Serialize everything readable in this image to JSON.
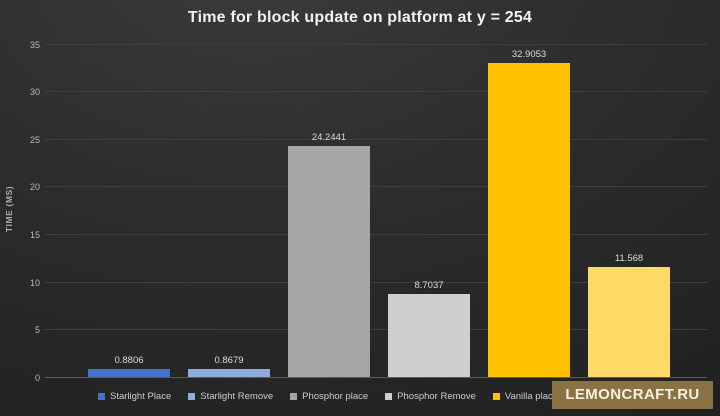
{
  "chart_data": {
    "type": "bar",
    "title": "Time for block update on platform at y = 254",
    "xlabel": "",
    "ylabel": "TIME (MS)",
    "ylim": [
      0,
      35
    ],
    "yticks": [
      0,
      5,
      10,
      15,
      20,
      25,
      30,
      35
    ],
    "grid": true,
    "legend_position": "bottom",
    "series": [
      {
        "name": "Starlight Place",
        "value": 0.8806,
        "value_label": "0.8806",
        "color": "#4472c4"
      },
      {
        "name": "Starlight Remove",
        "value": 0.8679,
        "value_label": "0.8679",
        "color": "#8faadc"
      },
      {
        "name": "Phosphor place",
        "value": 24.2441,
        "value_label": "24.2441",
        "color": "#a6a6a6"
      },
      {
        "name": "Phosphor Remove",
        "value": 8.7037,
        "value_label": "8.7037",
        "color": "#cfcfcf"
      },
      {
        "name": "Vanilla place",
        "value": 32.9053,
        "value_label": "32.9053",
        "color": "#ffc000"
      },
      {
        "name": "",
        "value": 11.568,
        "value_label": "11.568",
        "color": "#ffd966"
      }
    ]
  },
  "colors": {
    "background_dark": "#1e1e1e",
    "title_text": "#f2f2f2",
    "tick_text": "#b9b9b9",
    "gridline": "#3e3e3e",
    "baseline": "#5a5a5a",
    "legend_text": "#cccccc"
  },
  "watermark": {
    "text": "LEMONCRAFT.RU",
    "background": "#8a7245",
    "text_color": "#f7f1e1"
  }
}
